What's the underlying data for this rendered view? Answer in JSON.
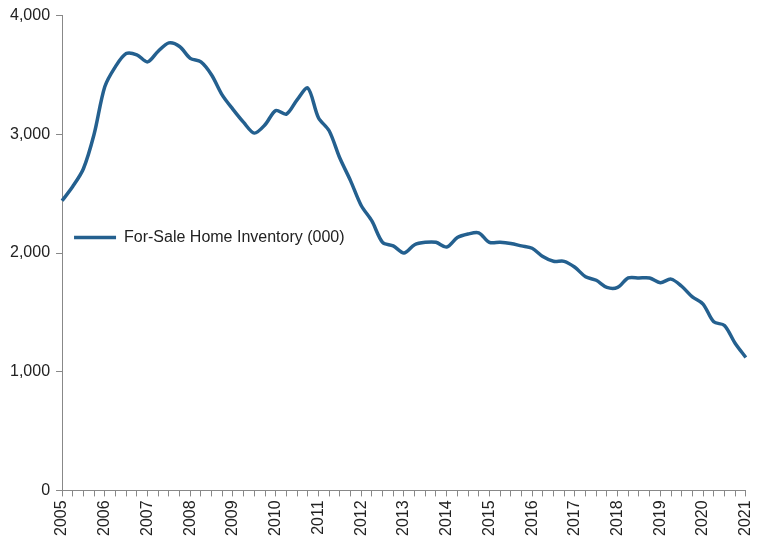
{
  "chart_data": {
    "type": "line",
    "categories": [
      "2005",
      null,
      null,
      null,
      "2006",
      null,
      null,
      null,
      "2007",
      null,
      null,
      null,
      "2008",
      null,
      null,
      null,
      "2009",
      null,
      null,
      null,
      "2010",
      null,
      null,
      null,
      "2011",
      null,
      null,
      null,
      "2012",
      null,
      null,
      null,
      "2013",
      null,
      null,
      null,
      "2014",
      null,
      null,
      null,
      "2015",
      null,
      null,
      null,
      "2016",
      null,
      null,
      null,
      "2017",
      null,
      null,
      null,
      "2018",
      null,
      null,
      null,
      "2019",
      null,
      null,
      null,
      "2020",
      null,
      null,
      null,
      "2021"
    ],
    "series": [
      {
        "name": "For-Sale Home Inventory (000)",
        "color": "#24608f",
        "values": [
          2440,
          2560,
          2710,
          3000,
          3400,
          3570,
          3680,
          3670,
          3610,
          3700,
          3770,
          3740,
          3640,
          3610,
          3500,
          3330,
          3210,
          3100,
          3010,
          3080,
          3200,
          3170,
          3290,
          3390,
          3140,
          3030,
          2800,
          2610,
          2400,
          2270,
          2090,
          2060,
          2000,
          2070,
          2090,
          2090,
          2050,
          2130,
          2160,
          2170,
          2090,
          2090,
          2080,
          2060,
          2040,
          1970,
          1930,
          1930,
          1880,
          1800,
          1770,
          1710,
          1710,
          1790,
          1790,
          1790,
          1750,
          1780,
          1720,
          1630,
          1570,
          1420,
          1390,
          1240,
          1120
        ]
      }
    ],
    "ylim": [
      0,
      4000
    ],
    "yticks": [
      0,
      {
        "value": 1000,
        "label": "1,000"
      },
      {
        "value": 2000,
        "label": "2,000"
      },
      {
        "value": 3000,
        "label": "3,000"
      },
      {
        "value": 4000,
        "label": "4,000"
      }
    ],
    "grid": false,
    "legend": "top"
  }
}
